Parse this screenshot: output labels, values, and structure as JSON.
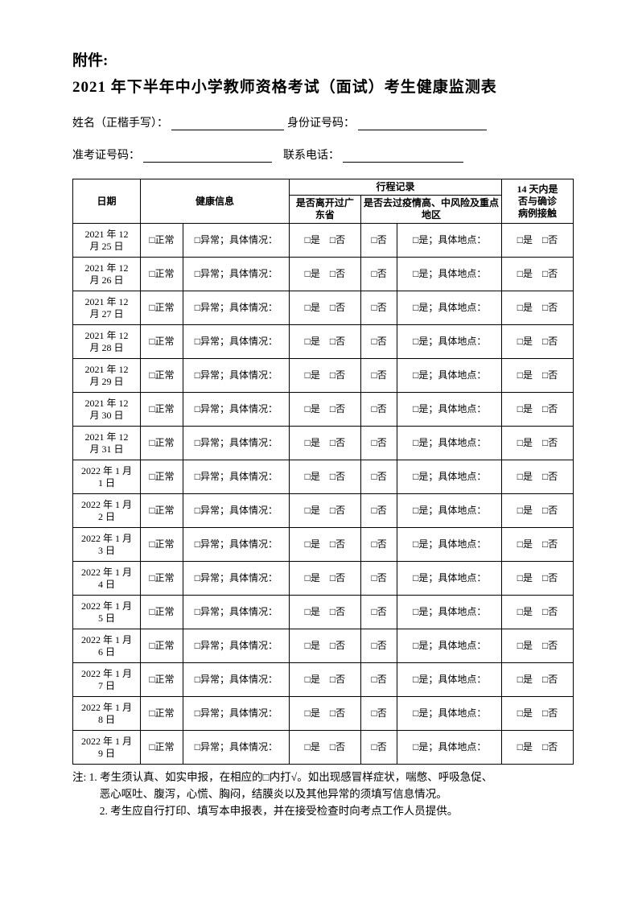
{
  "attachment_label": "附件:",
  "title": "2021 年下半年中小学教师资格考试（面试）考生健康监测表",
  "fields": {
    "name_label": "姓名（正楷手写）：",
    "id_label": "身份证号码：",
    "exam_no_label": "准考证号码：",
    "phone_label": "联系电话："
  },
  "headers": {
    "date": "日期",
    "health": "健康信息",
    "travel": "行程记录",
    "leave_gd": "是否离开过广东省",
    "risk_area": "是否去过疫情高、中风险及重点地区",
    "contact_14d_l1": "14 天内是",
    "contact_14d_l2": "否与确诊",
    "contact_14d_l3": "病例接触"
  },
  "cell": {
    "normal": "□正常",
    "abnormal": "□异常；具体情况：",
    "yes_no": "□是　□否",
    "no": "□否",
    "yes_loc": "□是；具体地点："
  },
  "dates": [
    "2021 年 12\n月 25 日",
    "2021 年 12\n月 26 日",
    "2021 年 12\n月 27 日",
    "2021 年 12\n月 28 日",
    "2021 年 12\n月 29 日",
    "2021 年 12\n月 30 日",
    "2021 年 12\n月 31 日",
    "2022 年 1 月\n1 日",
    "2022 年 1 月\n2 日",
    "2022 年 1 月\n3 日",
    "2022 年 1 月\n4 日",
    "2022 年 1 月\n5 日",
    "2022 年 1 月\n6 日",
    "2022 年 1 月\n7 日",
    "2022 年 1 月\n8 日",
    "2022 年 1 月\n9 日"
  ],
  "notes": {
    "l1": "注: 1. 考生须认真、如实申报，在相应的□内打√。如出现感冒样症状，喘憋、呼吸急促、",
    "l2": "恶心呕吐、腹泻，心慌、胸闷，结膜炎以及其他异常的须填写信息情况。",
    "l3": "2. 考生应自行打印、填写本申报表，并在接受检查时向考点工作人员提供。"
  }
}
